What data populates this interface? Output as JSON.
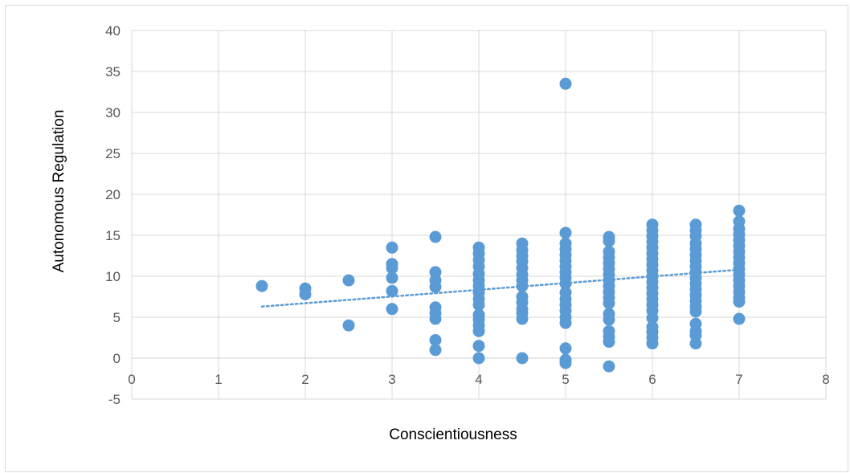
{
  "chart_data": {
    "type": "scatter",
    "title": "",
    "xlabel": "Conscientiousness",
    "ylabel": "Autonomous Regulation",
    "xlim": [
      0,
      8
    ],
    "ylim": [
      -5,
      40
    ],
    "x_ticks": [
      "0",
      "1",
      "2",
      "3",
      "4",
      "5",
      "6",
      "7",
      "8"
    ],
    "y_ticks": [
      "-5",
      "0",
      "5",
      "10",
      "15",
      "20",
      "25",
      "30",
      "35",
      "40"
    ],
    "grid": true,
    "legend": "none",
    "marker_color": "#5b9bd5",
    "trendline": {
      "type": "linear",
      "style": "dotted",
      "color": "#5b9bd5",
      "x": [
        1.5,
        7
      ],
      "y": [
        6.3,
        10.8
      ]
    },
    "points": [
      {
        "x": 1.5,
        "y": 8.8
      },
      {
        "x": 2,
        "y": 8.5
      },
      {
        "x": 2,
        "y": 7.8
      },
      {
        "x": 2.5,
        "y": 9.5
      },
      {
        "x": 2.5,
        "y": 4.0
      },
      {
        "x": 3,
        "y": 13.5
      },
      {
        "x": 3,
        "y": 11.5
      },
      {
        "x": 3,
        "y": 11.0
      },
      {
        "x": 3,
        "y": 9.8
      },
      {
        "x": 3,
        "y": 8.2
      },
      {
        "x": 3,
        "y": 6.0
      },
      {
        "x": 3.5,
        "y": 14.8
      },
      {
        "x": 3.5,
        "y": 10.5
      },
      {
        "x": 3.5,
        "y": 9.5
      },
      {
        "x": 3.5,
        "y": 8.7
      },
      {
        "x": 3.5,
        "y": 6.2
      },
      {
        "x": 3.5,
        "y": 5.5
      },
      {
        "x": 3.5,
        "y": 4.8
      },
      {
        "x": 3.5,
        "y": 2.2
      },
      {
        "x": 3.5,
        "y": 1.0
      },
      {
        "x": 4,
        "y": 13.5
      },
      {
        "x": 4,
        "y": 12.8
      },
      {
        "x": 4,
        "y": 12.0
      },
      {
        "x": 4,
        "y": 11.2
      },
      {
        "x": 4,
        "y": 10.3
      },
      {
        "x": 4,
        "y": 9.5
      },
      {
        "x": 4,
        "y": 8.8
      },
      {
        "x": 4,
        "y": 8.0
      },
      {
        "x": 4,
        "y": 7.2
      },
      {
        "x": 4,
        "y": 6.5
      },
      {
        "x": 4,
        "y": 5.3
      },
      {
        "x": 4,
        "y": 4.7
      },
      {
        "x": 4,
        "y": 4.0
      },
      {
        "x": 4,
        "y": 3.3
      },
      {
        "x": 4,
        "y": 1.5
      },
      {
        "x": 4,
        "y": 0.0
      },
      {
        "x": 4.5,
        "y": 14.0
      },
      {
        "x": 4.5,
        "y": 13.2
      },
      {
        "x": 4.5,
        "y": 12.5
      },
      {
        "x": 4.5,
        "y": 11.8
      },
      {
        "x": 4.5,
        "y": 11.0
      },
      {
        "x": 4.5,
        "y": 10.2
      },
      {
        "x": 4.5,
        "y": 9.5
      },
      {
        "x": 4.5,
        "y": 8.8
      },
      {
        "x": 4.5,
        "y": 7.5
      },
      {
        "x": 4.5,
        "y": 6.8
      },
      {
        "x": 4.5,
        "y": 6.0
      },
      {
        "x": 4.5,
        "y": 5.5
      },
      {
        "x": 4.5,
        "y": 4.8
      },
      {
        "x": 4.5,
        "y": 0.0
      },
      {
        "x": 5,
        "y": 33.5
      },
      {
        "x": 5,
        "y": 15.3
      },
      {
        "x": 5,
        "y": 14.0
      },
      {
        "x": 5,
        "y": 13.3
      },
      {
        "x": 5,
        "y": 12.6
      },
      {
        "x": 5,
        "y": 11.9
      },
      {
        "x": 5,
        "y": 11.2
      },
      {
        "x": 5,
        "y": 10.5
      },
      {
        "x": 5,
        "y": 9.8
      },
      {
        "x": 5,
        "y": 9.1
      },
      {
        "x": 5,
        "y": 8.0
      },
      {
        "x": 5,
        "y": 7.2
      },
      {
        "x": 5,
        "y": 6.5
      },
      {
        "x": 5,
        "y": 5.8
      },
      {
        "x": 5,
        "y": 5.0
      },
      {
        "x": 5,
        "y": 4.3
      },
      {
        "x": 5,
        "y": 1.2
      },
      {
        "x": 5,
        "y": -0.2
      },
      {
        "x": 5,
        "y": -0.6
      },
      {
        "x": 5.5,
        "y": 14.8
      },
      {
        "x": 5.5,
        "y": 14.3
      },
      {
        "x": 5.5,
        "y": 13.0
      },
      {
        "x": 5.5,
        "y": 12.3
      },
      {
        "x": 5.5,
        "y": 11.6
      },
      {
        "x": 5.5,
        "y": 10.9
      },
      {
        "x": 5.5,
        "y": 10.2
      },
      {
        "x": 5.5,
        "y": 9.5
      },
      {
        "x": 5.5,
        "y": 8.8
      },
      {
        "x": 5.5,
        "y": 8.1
      },
      {
        "x": 5.5,
        "y": 7.4
      },
      {
        "x": 5.5,
        "y": 6.7
      },
      {
        "x": 5.5,
        "y": 5.4
      },
      {
        "x": 5.5,
        "y": 4.7
      },
      {
        "x": 5.5,
        "y": 3.3
      },
      {
        "x": 5.5,
        "y": 2.6
      },
      {
        "x": 5.5,
        "y": 2.0
      },
      {
        "x": 5.5,
        "y": -1.0
      },
      {
        "x": 6,
        "y": 16.3
      },
      {
        "x": 6,
        "y": 15.6
      },
      {
        "x": 6,
        "y": 14.9
      },
      {
        "x": 6,
        "y": 14.2
      },
      {
        "x": 6,
        "y": 13.5
      },
      {
        "x": 6,
        "y": 12.8
      },
      {
        "x": 6,
        "y": 12.1
      },
      {
        "x": 6,
        "y": 11.4
      },
      {
        "x": 6,
        "y": 10.7
      },
      {
        "x": 6,
        "y": 10.0
      },
      {
        "x": 6,
        "y": 9.3
      },
      {
        "x": 6,
        "y": 8.6
      },
      {
        "x": 6,
        "y": 7.9
      },
      {
        "x": 6,
        "y": 7.2
      },
      {
        "x": 6,
        "y": 6.5
      },
      {
        "x": 6,
        "y": 5.8
      },
      {
        "x": 6,
        "y": 4.9
      },
      {
        "x": 6,
        "y": 3.8
      },
      {
        "x": 6,
        "y": 3.2
      },
      {
        "x": 6,
        "y": 2.5
      },
      {
        "x": 6,
        "y": 1.8
      },
      {
        "x": 6.5,
        "y": 16.3
      },
      {
        "x": 6.5,
        "y": 15.6
      },
      {
        "x": 6.5,
        "y": 14.9
      },
      {
        "x": 6.5,
        "y": 14.0
      },
      {
        "x": 6.5,
        "y": 13.3
      },
      {
        "x": 6.5,
        "y": 12.6
      },
      {
        "x": 6.5,
        "y": 11.9
      },
      {
        "x": 6.5,
        "y": 11.2
      },
      {
        "x": 6.5,
        "y": 10.5
      },
      {
        "x": 6.5,
        "y": 9.8
      },
      {
        "x": 6.5,
        "y": 9.1
      },
      {
        "x": 6.5,
        "y": 8.4
      },
      {
        "x": 6.5,
        "y": 7.7
      },
      {
        "x": 6.5,
        "y": 7.0
      },
      {
        "x": 6.5,
        "y": 6.3
      },
      {
        "x": 6.5,
        "y": 5.7
      },
      {
        "x": 6.5,
        "y": 4.2
      },
      {
        "x": 6.5,
        "y": 3.3
      },
      {
        "x": 6.5,
        "y": 2.8
      },
      {
        "x": 6.5,
        "y": 1.8
      },
      {
        "x": 7,
        "y": 18.0
      },
      {
        "x": 7,
        "y": 16.7
      },
      {
        "x": 7,
        "y": 15.8
      },
      {
        "x": 7,
        "y": 15.1
      },
      {
        "x": 7,
        "y": 14.4
      },
      {
        "x": 7,
        "y": 13.7
      },
      {
        "x": 7,
        "y": 13.0
      },
      {
        "x": 7,
        "y": 12.3
      },
      {
        "x": 7,
        "y": 11.6
      },
      {
        "x": 7,
        "y": 10.9
      },
      {
        "x": 7,
        "y": 10.2
      },
      {
        "x": 7,
        "y": 9.5
      },
      {
        "x": 7,
        "y": 8.8
      },
      {
        "x": 7,
        "y": 8.1
      },
      {
        "x": 7,
        "y": 7.4
      },
      {
        "x": 7,
        "y": 6.9
      },
      {
        "x": 7,
        "y": 4.8
      }
    ]
  }
}
